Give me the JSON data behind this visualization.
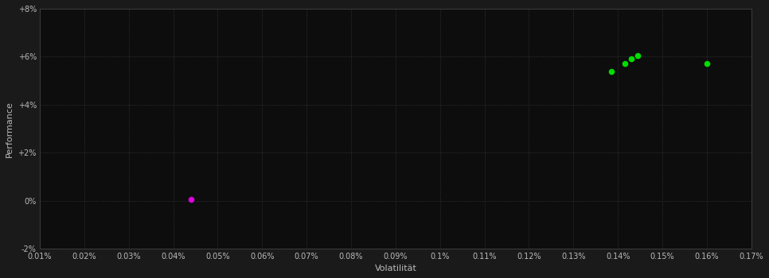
{
  "background_color": "#1a1a1a",
  "plot_bg_color": "#0d0d0d",
  "grid_color": "#3a3a3a",
  "text_color": "#bbbbbb",
  "xlabel": "Volatilität",
  "ylabel": "Performance",
  "xlim": [
    0.0001,
    0.0017
  ],
  "ylim": [
    -0.02,
    0.08
  ],
  "xticks": [
    0.0001,
    0.0002,
    0.0003,
    0.0004,
    0.0005,
    0.0006,
    0.0007,
    0.0008,
    0.0009,
    0.001,
    0.0011,
    0.0012,
    0.0013,
    0.0014,
    0.0015,
    0.0016,
    0.0017
  ],
  "xtick_labels": [
    "0.01%",
    "0.02%",
    "0.03%",
    "0.04%",
    "0.05%",
    "0.06%",
    "0.07%",
    "0.08%",
    "0.09%",
    "0.1%",
    "0.11%",
    "0.12%",
    "0.13%",
    "0.14%",
    "0.15%",
    "0.16%",
    "0.17%"
  ],
  "yticks": [
    -0.02,
    0.0,
    0.02,
    0.04,
    0.06,
    0.08
  ],
  "ytick_labels": [
    "-2%",
    "0%",
    "+2%",
    "+4%",
    "+6%",
    "+8%"
  ],
  "green_points": [
    [
      0.001385,
      0.054
    ],
    [
      0.001415,
      0.057
    ],
    [
      0.00143,
      0.059
    ],
    [
      0.001445,
      0.0605
    ],
    [
      0.0016,
      0.057
    ]
  ],
  "magenta_points": [
    [
      0.00044,
      0.0005
    ]
  ],
  "green_color": "#00dd00",
  "magenta_color": "#dd00dd",
  "point_size": 30,
  "marker": "o"
}
